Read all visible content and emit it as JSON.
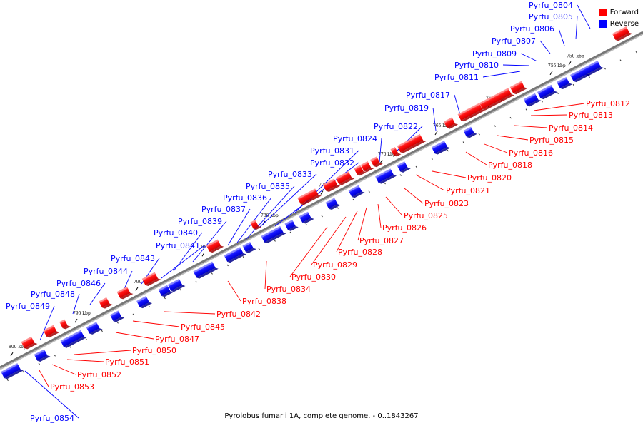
{
  "caption": "Pyrolobus fumarii 1A, complete genome. - 0..1843267",
  "legend": {
    "forward": {
      "label": "Forward",
      "color": "#ff0000"
    },
    "reverse": {
      "label": "Reverse",
      "color": "#0000ff"
    }
  },
  "colors": {
    "forward": "#ff0000",
    "reverse": "#0000ff",
    "axis": "#777777"
  },
  "scale": {
    "unit": "kbp",
    "ticks": [
      "750 kbp",
      "755 kbp",
      "760 kbp",
      "765 kbp",
      "770 kbp",
      "775 kbp",
      "780 kbp",
      "785 kbp",
      "790 kbp",
      "795 kbp",
      "800 kbp"
    ]
  },
  "genes": {
    "reverse": [
      "Pyrfu_0804",
      "Pyrfu_0805",
      "Pyrfu_0806",
      "Pyrfu_0807",
      "Pyrfu_0809",
      "Pyrfu_0810",
      "Pyrfu_0811",
      "Pyrfu_0817",
      "Pyrfu_0819",
      "Pyrfu_0822",
      "Pyrfu_0824",
      "Pyrfu_0831",
      "Pyrfu_0832",
      "Pyrfu_0833",
      "Pyrfu_0835",
      "Pyrfu_0836",
      "Pyrfu_0837",
      "Pyrfu_0839",
      "Pyrfu_0840",
      "Pyrfu_0841",
      "Pyrfu_0843",
      "Pyrfu_0844",
      "Pyrfu_0846",
      "Pyrfu_0848",
      "Pyrfu_0849",
      "Pyrfu_0854"
    ],
    "forward": [
      "Pyrfu_0812",
      "Pyrfu_0813",
      "Pyrfu_0814",
      "Pyrfu_0815",
      "Pyrfu_0816",
      "Pyrfu_0818",
      "Pyrfu_0820",
      "Pyrfu_0821",
      "Pyrfu_0823",
      "Pyrfu_0825",
      "Pyrfu_0826",
      "Pyrfu_0827",
      "Pyrfu_0828",
      "Pyrfu_0829",
      "Pyrfu_0830",
      "Pyrfu_0834",
      "Pyrfu_0838",
      "Pyrfu_0842",
      "Pyrfu_0845",
      "Pyrfu_0847",
      "Pyrfu_0850",
      "Pyrfu_0851",
      "Pyrfu_0852",
      "Pyrfu_0853"
    ]
  }
}
